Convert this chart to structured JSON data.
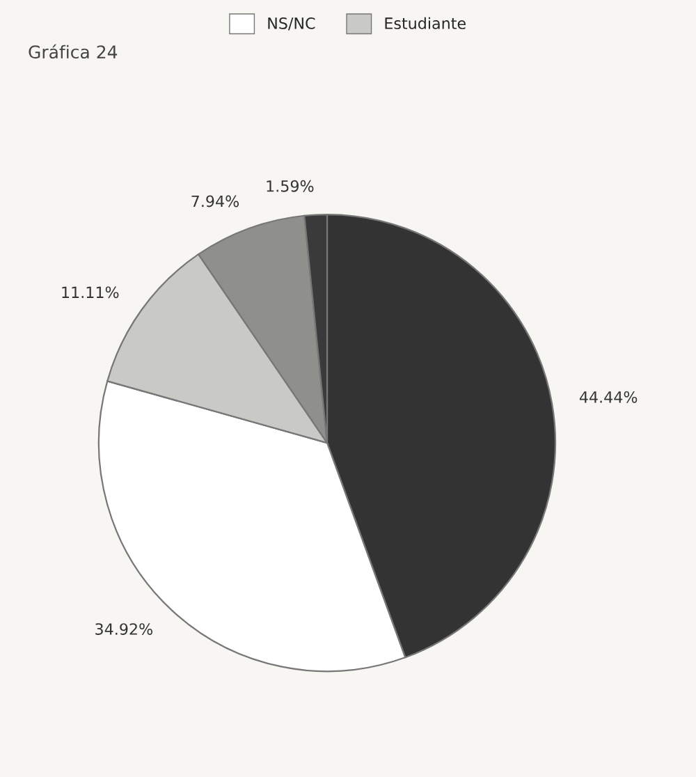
{
  "chart_data": {
    "type": "pie",
    "title": "Gráfica 24",
    "categories": [
      null,
      "NS/NC",
      "Estudiante",
      null,
      null
    ],
    "values": [
      44.44,
      34.92,
      11.11,
      7.94,
      1.59
    ],
    "value_labels": [
      "44.44%",
      "34.92%",
      "11.11%",
      "7.94%",
      "1.59%"
    ],
    "colors": [
      "#333333",
      "#ffffff",
      "#c9c9c6",
      "#8f8f8c",
      "#3a3a3a"
    ],
    "legend": "top"
  }
}
